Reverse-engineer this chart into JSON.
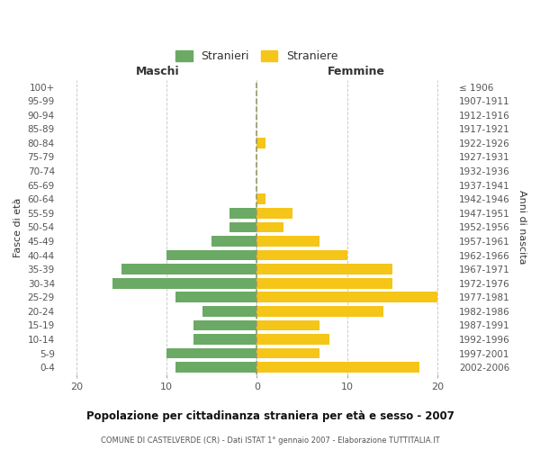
{
  "age_groups": [
    "0-4",
    "5-9",
    "10-14",
    "15-19",
    "20-24",
    "25-29",
    "30-34",
    "35-39",
    "40-44",
    "45-49",
    "50-54",
    "55-59",
    "60-64",
    "65-69",
    "70-74",
    "75-79",
    "80-84",
    "85-89",
    "90-94",
    "95-99",
    "100+"
  ],
  "birth_years": [
    "2002-2006",
    "1997-2001",
    "1992-1996",
    "1987-1991",
    "1982-1986",
    "1977-1981",
    "1972-1976",
    "1967-1971",
    "1962-1966",
    "1957-1961",
    "1952-1956",
    "1947-1951",
    "1942-1946",
    "1937-1941",
    "1932-1936",
    "1927-1931",
    "1922-1926",
    "1917-1921",
    "1912-1916",
    "1907-1911",
    "≤ 1906"
  ],
  "males": [
    9,
    10,
    7,
    7,
    6,
    9,
    16,
    15,
    10,
    5,
    3,
    3,
    0,
    0,
    0,
    0,
    0,
    0,
    0,
    0,
    0
  ],
  "females": [
    18,
    7,
    8,
    7,
    14,
    20,
    15,
    15,
    10,
    7,
    3,
    4,
    1,
    0,
    0,
    0,
    1,
    0,
    0,
    0,
    0
  ],
  "male_color": "#6aaa64",
  "female_color": "#f5c518",
  "title_main": "Popolazione per cittadinanza straniera per età e sesso - 2007",
  "title_sub": "COMUNE DI CASTELVERDE (CR) - Dati ISTAT 1° gennaio 2007 - Elaborazione TUTTITALIA.IT",
  "xlabel_left": "Maschi",
  "xlabel_right": "Femmine",
  "ylabel_left": "Fasce di età",
  "ylabel_right": "Anni di nascita",
  "legend_male": "Stranieri",
  "legend_female": "Straniere",
  "xlim": 22,
  "background_color": "#ffffff",
  "grid_color": "#cccccc",
  "bar_height": 0.75
}
